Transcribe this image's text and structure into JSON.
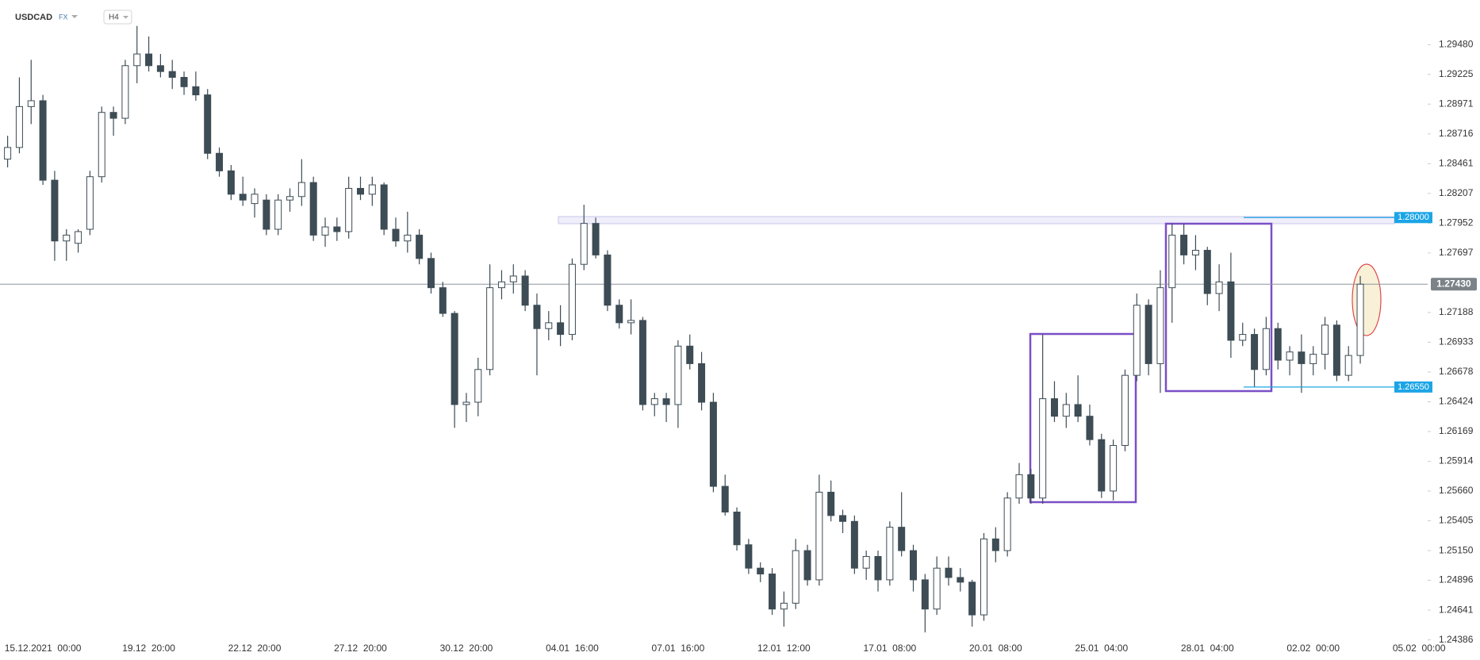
{
  "chart_data": {
    "type": "candlestick",
    "symbol": "USDCAD",
    "market": "FX",
    "timeframe": "H4",
    "up_color": "#ffffff",
    "down_color": "#3d4c55",
    "ylim": [
      1.2437,
      1.29862
    ],
    "yticks": [
      {
        "value": 1.2948,
        "label": "1.29480"
      },
      {
        "value": 1.29225,
        "label": "1.29225"
      },
      {
        "value": 1.28971,
        "label": "1.28971"
      },
      {
        "value": 1.28716,
        "label": "1.28716"
      },
      {
        "value": 1.28461,
        "label": "1.28461"
      },
      {
        "value": 1.28207,
        "label": "1.28207"
      },
      {
        "value": 1.27952,
        "label": "1.27952"
      },
      {
        "value": 1.27697,
        "label": "1.27697"
      },
      {
        "value": 1.27188,
        "label": "1.27188"
      },
      {
        "value": 1.26933,
        "label": "1.26933"
      },
      {
        "value": 1.26678,
        "label": "1.26678"
      },
      {
        "value": 1.26424,
        "label": "1.26424"
      },
      {
        "value": 1.26169,
        "label": "1.26169"
      },
      {
        "value": 1.25914,
        "label": "1.25914"
      },
      {
        "value": 1.2566,
        "label": "1.25660"
      },
      {
        "value": 1.25405,
        "label": "1.25405"
      },
      {
        "value": 1.2515,
        "label": "1.25150"
      },
      {
        "value": 1.24896,
        "label": "1.24896"
      },
      {
        "value": 1.24641,
        "label": "1.24641"
      },
      {
        "value": 1.24386,
        "label": "1.24386"
      }
    ],
    "categories": [
      null,
      null,
      null,
      "15.12.2021  00:00",
      null,
      null,
      null,
      null,
      null,
      null,
      null,
      null,
      "19.12  20:00",
      null,
      null,
      null,
      null,
      null,
      null,
      null,
      null,
      "22.12  20:00",
      null,
      null,
      null,
      null,
      null,
      null,
      null,
      null,
      "27.12  20:00",
      null,
      null,
      null,
      null,
      null,
      null,
      null,
      null,
      "30.12  20:00",
      null,
      null,
      null,
      null,
      null,
      null,
      null,
      null,
      "04.01  16:00",
      null,
      null,
      null,
      null,
      null,
      null,
      null,
      null,
      "07.01  16:00",
      null,
      null,
      null,
      null,
      null,
      null,
      null,
      null,
      "12.01  12:00",
      null,
      null,
      null,
      null,
      null,
      null,
      null,
      null,
      "17.01  08:00",
      null,
      null,
      null,
      null,
      null,
      null,
      null,
      null,
      "20.01  08:00",
      null,
      null,
      null,
      null,
      null,
      null,
      null,
      null,
      "25.01  04:00",
      null,
      null,
      null,
      null,
      null,
      null,
      null,
      null,
      "28.01  04:00",
      null,
      null,
      null,
      null,
      null,
      null,
      null,
      null,
      "02.02  00:00",
      null,
      null,
      null,
      null,
      null,
      null,
      null,
      null,
      "05.02  00:00"
    ],
    "open": [
      1.285,
      1.286,
      1.2895,
      1.29,
      1.2832,
      1.278,
      1.2778,
      1.279,
      1.2835,
      1.289,
      1.2885,
      1.293,
      1.294,
      1.293,
      1.2925,
      1.292,
      1.2912,
      1.2905,
      1.2855,
      1.284,
      1.282,
      1.2812,
      1.2815,
      1.279,
      1.2815,
      1.2818,
      1.283,
      1.2785,
      1.2792,
      1.2788,
      1.2825,
      1.282,
      1.2828,
      1.279,
      1.278,
      1.2785,
      1.2765,
      1.274,
      1.2718,
      1.264,
      1.2642,
      1.267,
      1.274,
      1.2745,
      1.275,
      1.2725,
      1.2705,
      1.271,
      1.27,
      1.276,
      1.2795,
      1.2768,
      1.2725,
      1.271,
      1.2712,
      1.264,
      1.2645,
      1.264,
      1.269,
      1.2675,
      1.2642,
      1.257,
      1.2548,
      1.252,
      1.25,
      1.2495,
      1.2465,
      1.247,
      1.2515,
      1.249,
      1.2565,
      1.2545,
      1.254,
      1.25,
      1.251,
      1.249,
      1.2535,
      1.2515,
      1.249,
      1.2465,
      1.25,
      1.2492,
      1.2488,
      1.246,
      1.2525,
      1.2515,
      1.256,
      1.258,
      1.256,
      1.2645,
      1.263,
      1.264,
      1.263,
      1.261,
      1.2566,
      1.2605,
      1.2665,
      1.2725,
      1.2675,
      1.274,
      1.2785,
      1.2768,
      1.2772,
      1.2735,
      1.2745,
      1.2695,
      1.27,
      1.267,
      1.2705,
      1.2678,
      1.2685,
      1.2675,
      1.2683,
      1.2708,
      1.2665,
      1.2682,
      null,
      null,
      null,
      null,
      null
    ],
    "high": [
      1.287,
      1.292,
      1.2935,
      1.2905,
      1.284,
      1.279,
      1.279,
      1.284,
      1.2895,
      1.2895,
      1.2935,
      1.2964,
      1.2955,
      1.294,
      1.2935,
      1.2925,
      1.2925,
      1.291,
      1.286,
      1.2845,
      1.2835,
      1.2825,
      1.282,
      1.282,
      1.2825,
      1.285,
      1.2835,
      1.28,
      1.28,
      1.2835,
      1.2835,
      1.2835,
      1.283,
      1.28,
      1.2805,
      1.279,
      1.277,
      1.2745,
      1.272,
      1.265,
      1.268,
      1.276,
      1.2755,
      1.276,
      1.2755,
      1.2735,
      1.272,
      1.2725,
      1.2765,
      1.2811,
      1.28,
      1.2772,
      1.273,
      1.273,
      1.2715,
      1.265,
      1.265,
      1.2695,
      1.27,
      1.2685,
      1.265,
      1.258,
      1.2552,
      1.2525,
      1.2505,
      1.25,
      1.248,
      1.2525,
      1.252,
      1.258,
      1.2575,
      1.255,
      1.2545,
      1.2515,
      1.2515,
      1.254,
      1.2565,
      1.252,
      1.2495,
      1.251,
      1.251,
      1.25,
      1.249,
      1.253,
      1.2535,
      1.2565,
      1.259,
      1.2585,
      1.27,
      1.266,
      1.265,
      1.2665,
      1.264,
      1.2615,
      1.261,
      1.267,
      1.2735,
      1.273,
      1.2755,
      1.2795,
      1.2795,
      1.2785,
      1.2775,
      1.276,
      1.277,
      1.271,
      1.2705,
      1.2715,
      1.271,
      1.269,
      1.27,
      1.269,
      1.2715,
      1.2712,
      1.269,
      1.275,
      null,
      null,
      null,
      null,
      null
    ],
    "low": [
      1.2843,
      1.2855,
      1.288,
      1.2828,
      1.2763,
      1.2763,
      1.277,
      1.2785,
      1.283,
      1.287,
      1.288,
      1.2915,
      1.2925,
      1.292,
      1.291,
      1.2905,
      1.29,
      1.285,
      1.2835,
      1.2815,
      1.281,
      1.28,
      1.2785,
      1.2785,
      1.2805,
      1.281,
      1.278,
      1.2775,
      1.278,
      1.2782,
      1.2815,
      1.281,
      1.2785,
      1.2775,
      1.277,
      1.276,
      1.2735,
      1.2715,
      1.262,
      1.2625,
      1.263,
      1.2665,
      1.273,
      1.2735,
      1.272,
      1.2665,
      1.2695,
      1.269,
      1.2695,
      1.2755,
      1.2765,
      1.272,
      1.2705,
      1.27,
      1.2635,
      1.263,
      1.2625,
      1.262,
      1.267,
      1.2635,
      1.2565,
      1.2545,
      1.2515,
      1.2495,
      1.2488,
      1.246,
      1.245,
      1.2465,
      1.2485,
      1.2485,
      1.254,
      1.253,
      1.2495,
      1.249,
      1.248,
      1.2485,
      1.251,
      1.248,
      1.2445,
      1.246,
      1.2485,
      1.248,
      1.245,
      1.2455,
      1.2505,
      1.251,
      1.2555,
      1.2555,
      1.2555,
      1.2625,
      1.262,
      1.2625,
      1.2605,
      1.256,
      1.2558,
      1.26,
      1.266,
      1.2665,
      1.265,
      1.271,
      1.276,
      1.2755,
      1.2725,
      1.272,
      1.268,
      1.269,
      1.2655,
      1.2665,
      1.267,
      1.2665,
      1.265,
      1.2665,
      1.267,
      1.266,
      1.266,
      1.2675,
      null,
      null,
      null,
      null,
      null
    ],
    "close": [
      1.286,
      1.2895,
      1.29,
      1.2832,
      1.278,
      1.2785,
      1.2788,
      1.2835,
      1.289,
      1.2885,
      1.293,
      1.294,
      1.293,
      1.2925,
      1.292,
      1.2912,
      1.2905,
      1.2855,
      1.284,
      1.282,
      1.2815,
      1.282,
      1.279,
      1.2815,
      1.2818,
      1.283,
      1.2785,
      1.2792,
      1.2788,
      1.2825,
      1.282,
      1.2828,
      1.279,
      1.278,
      1.2785,
      1.2765,
      1.274,
      1.2718,
      1.264,
      1.2642,
      1.267,
      1.274,
      1.2745,
      1.275,
      1.2725,
      1.2705,
      1.271,
      1.27,
      1.276,
      1.2795,
      1.2768,
      1.2725,
      1.271,
      1.2712,
      1.264,
      1.2645,
      1.264,
      1.269,
      1.2675,
      1.2642,
      1.257,
      1.2548,
      1.252,
      1.25,
      1.2495,
      1.2465,
      1.247,
      1.2515,
      1.249,
      1.2565,
      1.2545,
      1.254,
      1.25,
      1.251,
      1.249,
      1.2535,
      1.2515,
      1.249,
      1.2465,
      1.25,
      1.2492,
      1.2488,
      1.246,
      1.2525,
      1.2515,
      1.256,
      1.258,
      1.256,
      1.2645,
      1.263,
      1.264,
      1.263,
      1.261,
      1.2566,
      1.2605,
      1.2665,
      1.2725,
      1.2675,
      1.274,
      1.2785,
      1.2768,
      1.2772,
      1.2735,
      1.2745,
      1.2695,
      1.27,
      1.267,
      1.2705,
      1.2678,
      1.2685,
      1.2675,
      1.2683,
      1.2708,
      1.2665,
      1.2682,
      1.2743,
      null,
      null,
      null,
      null,
      null
    ],
    "levels": [
      {
        "value": 1.28,
        "label": "1.28000",
        "color": "#1ca5e6"
      },
      {
        "value": 1.2655,
        "label": "1.26550",
        "color": "#1ca5e6"
      }
    ],
    "last_price": {
      "value": 1.2743,
      "label": "1.27430",
      "color": "#7b8389"
    }
  }
}
